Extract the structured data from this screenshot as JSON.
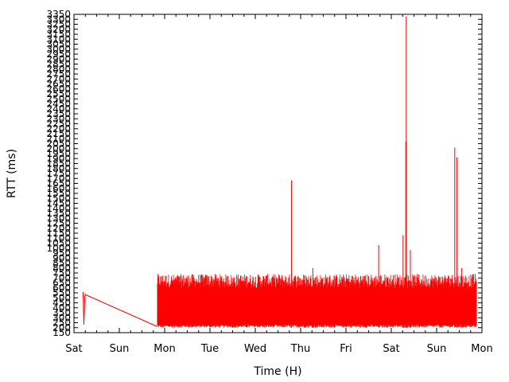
{
  "chart_data": {
    "type": "line",
    "title": "",
    "xlabel": "Time (H)",
    "ylabel": "RTT (ms)",
    "xlim": [
      0,
      9
    ],
    "ylim": [
      150,
      3350
    ],
    "x_tick_labels": [
      "Sat",
      "Sun",
      "Mon",
      "Tue",
      "Wed",
      "Thu",
      "Fri",
      "Sat",
      "Sun",
      "Mon"
    ],
    "y_ticks": [
      150,
      200,
      250,
      300,
      350,
      400,
      450,
      500,
      550,
      600,
      650,
      700,
      750,
      800,
      850,
      900,
      950,
      1000,
      1050,
      1100,
      1150,
      1200,
      1250,
      1300,
      1350,
      1400,
      1450,
      1500,
      1550,
      1600,
      1650,
      1700,
      1750,
      1800,
      1850,
      1900,
      1950,
      2000,
      2050,
      2100,
      2150,
      2200,
      2250,
      2300,
      2350,
      2400,
      2450,
      2500,
      2550,
      2600,
      2650,
      2700,
      2750,
      2800,
      2850,
      2900,
      2950,
      3000,
      3050,
      3100,
      3150,
      3200,
      3250,
      3300,
      3350
    ],
    "grid": false,
    "legend": "none",
    "series": [
      {
        "name": "",
        "color": "#ff0000",
        "segments": [
          {
            "x": [
              0.2,
              0.22,
              0.24,
              0.26
            ],
            "y": [
              560,
              230,
              520,
              540
            ]
          },
          {
            "x": [
              0.26,
              1.84
            ],
            "y": [
              530,
              210
            ]
          }
        ],
        "band": {
          "x_start": 1.84,
          "x_end": 8.88,
          "y_low": 200,
          "y_high": 720
        },
        "spikes": [
          {
            "x": 1.95,
            "y": 690
          },
          {
            "x": 4.8,
            "y": 1680
          },
          {
            "x": 5.27,
            "y": 800
          },
          {
            "x": 6.72,
            "y": 1030
          },
          {
            "x": 7.26,
            "y": 1130
          },
          {
            "x": 7.32,
            "y": 2070
          },
          {
            "x": 7.33,
            "y": 3330
          },
          {
            "x": 7.42,
            "y": 980
          },
          {
            "x": 8.4,
            "y": 2010
          },
          {
            "x": 8.45,
            "y": 1910
          },
          {
            "x": 8.55,
            "y": 800
          }
        ]
      }
    ]
  }
}
